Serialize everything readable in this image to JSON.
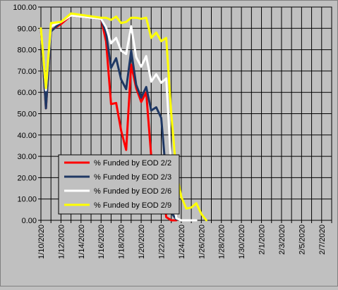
{
  "chart_data": {
    "type": "line",
    "title": "",
    "xlabel": "",
    "ylabel": "",
    "ylim": [
      0,
      100
    ],
    "y_ticks": [
      "0.00",
      "10.00",
      "20.00",
      "30.00",
      "40.00",
      "50.00",
      "60.00",
      "70.00",
      "80.00",
      "90.00",
      "100.00"
    ],
    "x_categories": [
      "1/10/2020",
      "1/11/2020",
      "1/12/2020",
      "1/13/2020",
      "1/14/2020",
      "1/15/2020",
      "1/16/2020",
      "1/17/2020",
      "1/18/2020",
      "1/19/2020",
      "1/20/2020",
      "1/21/2020",
      "1/22/2020",
      "1/23/2020",
      "1/24/2020",
      "1/25/2020",
      "1/26/2020",
      "1/27/2020",
      "1/28/2020",
      "1/29/2020",
      "1/30/2020",
      "1/31/2020",
      "2/1/2020",
      "2/2/2020",
      "2/3/2020",
      "2/4/2020",
      "2/5/2020",
      "2/6/2020",
      "2/7/2020"
    ],
    "x_tick_labels": [
      "1/10/2020",
      "1/12/2020",
      "1/14/2020",
      "1/16/2020",
      "1/18/2020",
      "1/20/2020",
      "1/22/2020",
      "1/24/2020",
      "1/26/2020",
      "1/28/2020",
      "1/30/2020",
      "2/1/2020",
      "2/3/2020",
      "2/5/2020",
      "2/7/2020"
    ],
    "grid": true,
    "legend_position": "lower-left",
    "plot_background": "#c0c0c0",
    "series": [
      {
        "name": "% Funded by EOD  2/2",
        "color": "#ff0000",
        "points": [
          [
            "1/10/2020",
            90
          ],
          [
            "1/10/2020 12:00",
            52.5
          ],
          [
            "1/11/2020",
            89
          ],
          [
            "1/12/2020",
            92
          ],
          [
            "1/13/2020",
            96
          ],
          [
            "1/16/2020",
            94.5
          ],
          [
            "1/16/2020 12:00",
            84
          ],
          [
            "1/17/2020",
            54.5
          ],
          [
            "1/17/2020 12:00",
            55
          ],
          [
            "1/18/2020",
            42
          ],
          [
            "1/18/2020 12:00",
            33
          ],
          [
            "1/19/2020",
            73
          ],
          [
            "1/19/2020 12:00",
            62
          ],
          [
            "1/20/2020",
            55.5
          ],
          [
            "1/20/2020 12:00",
            60
          ],
          [
            "1/21/2020",
            30
          ],
          [
            "1/21/2020 12:00",
            22.5
          ],
          [
            "1/22/2020",
            21
          ],
          [
            "1/22/2020 12:00",
            1.5
          ],
          [
            "1/23/2020",
            0
          ],
          [
            "1/23/2020 12:00",
            0
          ]
        ]
      },
      {
        "name": "% Funded by EOD  2/3",
        "color": "#1f3864",
        "points": [
          [
            "1/10/2020",
            90
          ],
          [
            "1/10/2020 12:00",
            52.5
          ],
          [
            "1/11/2020",
            88.5
          ],
          [
            "1/12/2020",
            93
          ],
          [
            "1/13/2020",
            96
          ],
          [
            "1/16/2020",
            94.5
          ],
          [
            "1/16/2020 12:00",
            88
          ],
          [
            "1/17/2020",
            71.5
          ],
          [
            "1/17/2020 12:00",
            76
          ],
          [
            "1/18/2020",
            66
          ],
          [
            "1/18/2020 12:00",
            61.5
          ],
          [
            "1/19/2020",
            79.5
          ],
          [
            "1/19/2020 12:00",
            63.5
          ],
          [
            "1/20/2020",
            57.5
          ],
          [
            "1/20/2020 12:00",
            62.5
          ],
          [
            "1/21/2020",
            51.5
          ],
          [
            "1/21/2020 12:00",
            53
          ],
          [
            "1/22/2020",
            48
          ],
          [
            "1/22/2020 12:00",
            20.5
          ],
          [
            "1/23/2020",
            3.5
          ],
          [
            "1/23/2020 12:00",
            0.5
          ]
        ]
      },
      {
        "name": "% Funded by EOD  2/6",
        "color": "#ffffff",
        "points": [
          [
            "1/10/2020",
            90
          ],
          [
            "1/10/2020 12:00",
            61
          ],
          [
            "1/11/2020",
            91
          ],
          [
            "1/12/2020",
            93
          ],
          [
            "1/13/2020",
            96
          ],
          [
            "1/16/2020",
            94.5
          ],
          [
            "1/16/2020 12:00",
            90.5
          ],
          [
            "1/17/2020",
            83
          ],
          [
            "1/17/2020 12:00",
            85.5
          ],
          [
            "1/18/2020",
            79.5
          ],
          [
            "1/18/2020 12:00",
            78
          ],
          [
            "1/19/2020",
            91
          ],
          [
            "1/19/2020 12:00",
            76.5
          ],
          [
            "1/20/2020",
            72
          ],
          [
            "1/20/2020 12:00",
            77
          ],
          [
            "1/21/2020",
            65
          ],
          [
            "1/21/2020 12:00",
            68.5
          ],
          [
            "1/22/2020",
            64.5
          ],
          [
            "1/22/2020 12:00",
            66.5
          ],
          [
            "1/23/2020",
            24.5
          ],
          [
            "1/23/2020 12:00",
            1
          ],
          [
            "1/24/2020",
            0
          ],
          [
            "1/24/2020 12:00",
            0
          ],
          [
            "1/25/2020",
            0
          ],
          [
            "1/25/2020 12:00",
            0
          ]
        ]
      },
      {
        "name": "% Funded by EOD  2/9",
        "color": "#ffff00",
        "points": [
          [
            "1/10/2020",
            90
          ],
          [
            "1/10/2020 12:00",
            62
          ],
          [
            "1/11/2020",
            92.5
          ],
          [
            "1/12/2020",
            93
          ],
          [
            "1/13/2020",
            97
          ],
          [
            "1/16/2020",
            95
          ],
          [
            "1/16/2020 12:00",
            95
          ],
          [
            "1/17/2020",
            94
          ],
          [
            "1/17/2020 12:00",
            95.5
          ],
          [
            "1/18/2020",
            92.5
          ],
          [
            "1/18/2020 12:00",
            93
          ],
          [
            "1/19/2020",
            95
          ],
          [
            "1/19/2020 12:00",
            95
          ],
          [
            "1/20/2020",
            94.5
          ],
          [
            "1/20/2020 12:00",
            95
          ],
          [
            "1/21/2020",
            85.5
          ],
          [
            "1/21/2020 12:00",
            88
          ],
          [
            "1/22/2020",
            84
          ],
          [
            "1/22/2020 12:00",
            85.5
          ],
          [
            "1/23/2020",
            50
          ],
          [
            "1/23/2020 12:00",
            23
          ],
          [
            "1/24/2020",
            11
          ],
          [
            "1/24/2020 12:00",
            5.5
          ],
          [
            "1/25/2020",
            6
          ],
          [
            "1/25/2020 12:00",
            8
          ],
          [
            "1/26/2020",
            3
          ],
          [
            "1/26/2020 12:00",
            0
          ]
        ]
      }
    ]
  }
}
